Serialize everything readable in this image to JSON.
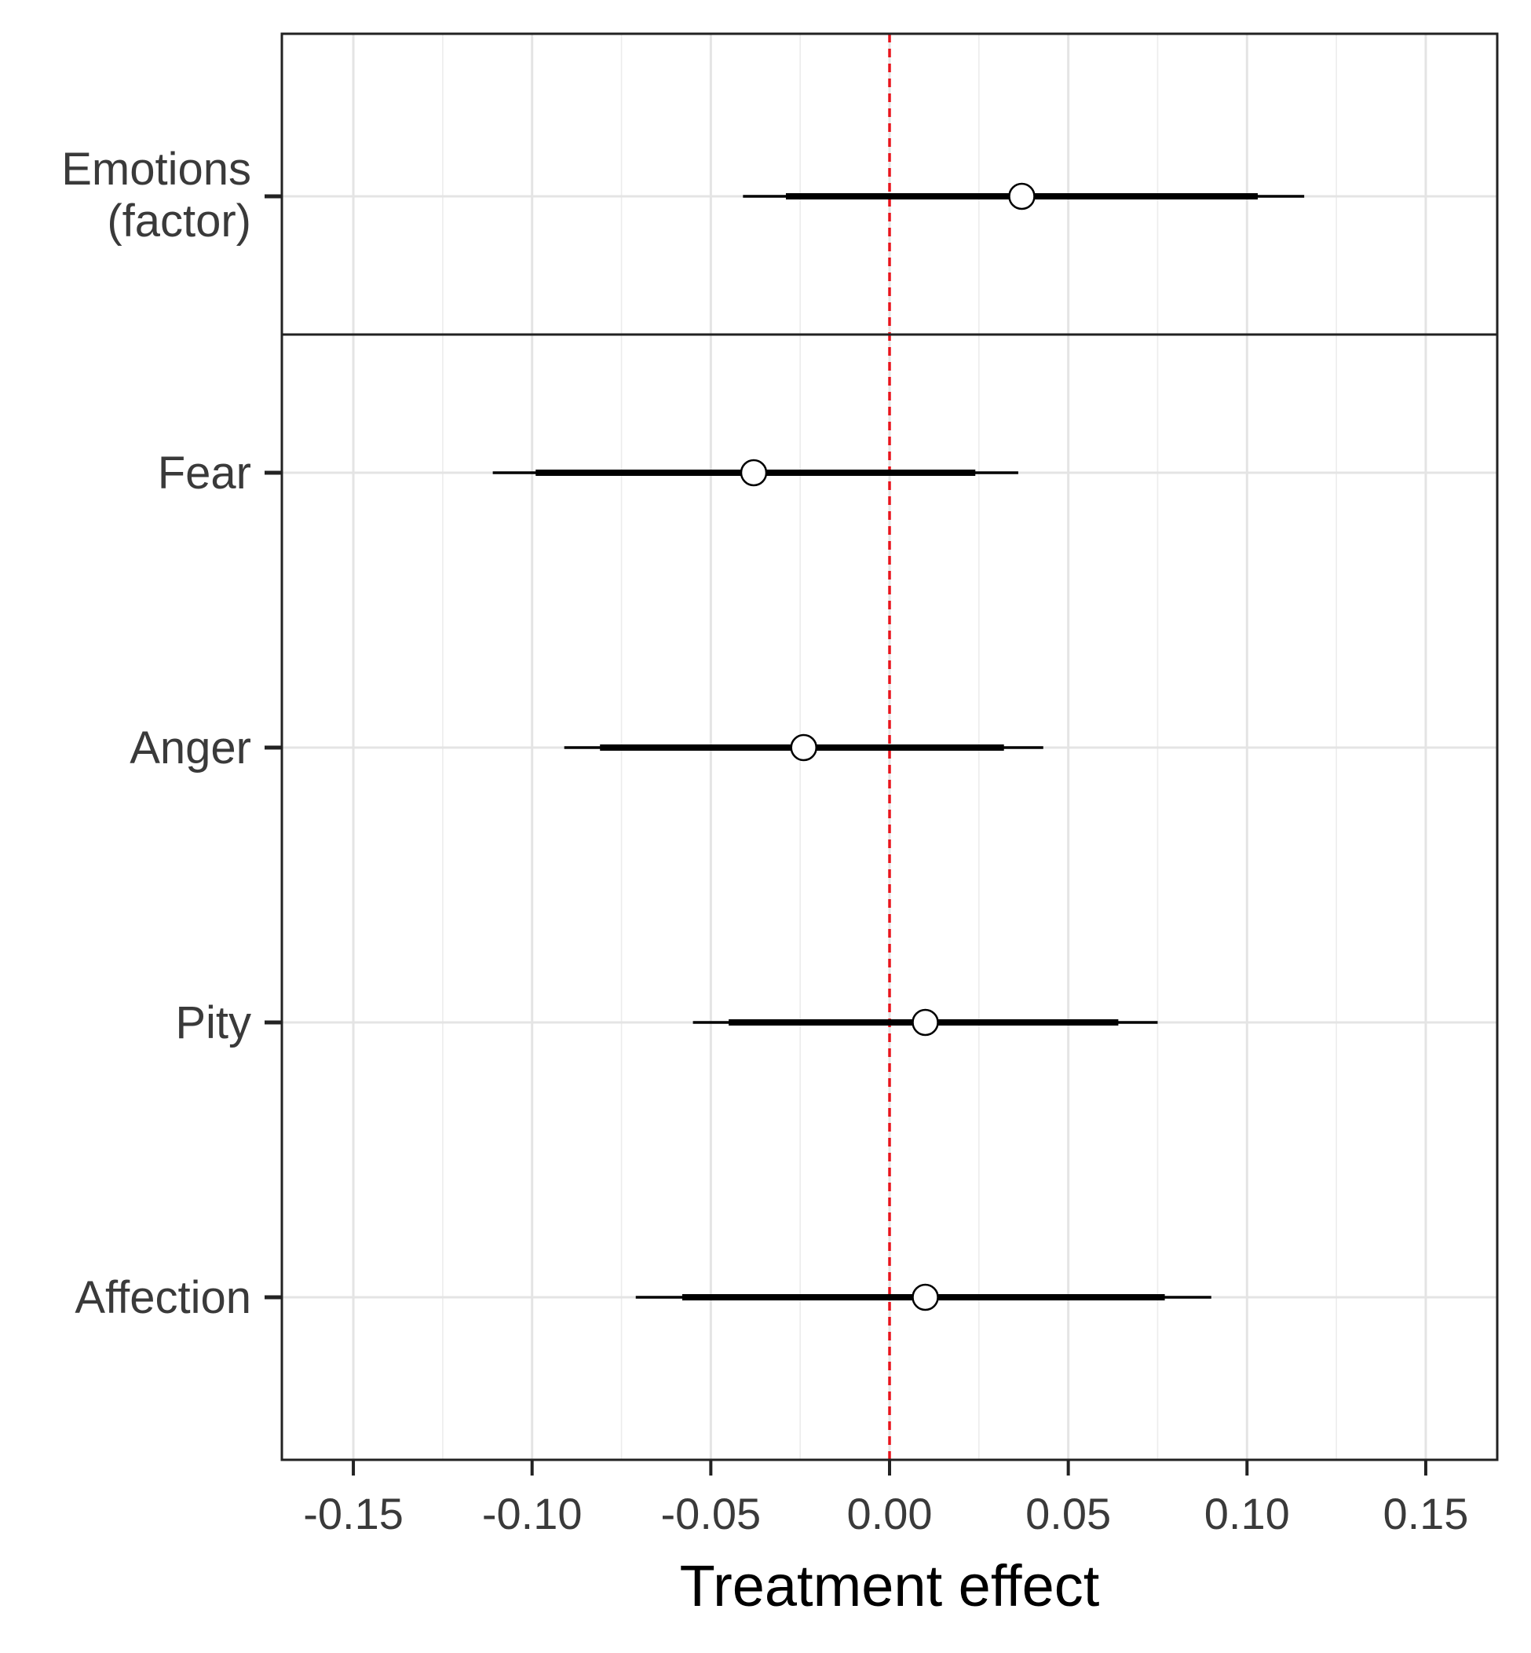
{
  "chart_data": {
    "type": "coefficient-plot",
    "title": "",
    "xlabel": "Treatment effect",
    "ylabel": "",
    "xlim": [
      -0.17,
      0.17
    ],
    "xticks": [
      -0.15,
      -0.1,
      -0.05,
      0.0,
      0.05,
      0.1,
      0.15
    ],
    "xtick_labels": [
      "-0.15",
      "-0.10",
      "-0.05",
      "0.00",
      "0.05",
      "0.10",
      "0.15"
    ],
    "grid": true,
    "reference_line": {
      "x": 0.0,
      "color": "#e8141c",
      "style": "dashed"
    },
    "panels": [
      {
        "rows": [
          {
            "label": [
              "Emotions",
              "(factor)"
            ],
            "estimate": 0.037,
            "ci90": [
              -0.029,
              0.103
            ],
            "ci95": [
              -0.041,
              0.116
            ]
          }
        ]
      },
      {
        "rows": [
          {
            "label": [
              "Fear"
            ],
            "estimate": -0.038,
            "ci90": [
              -0.099,
              0.024
            ],
            "ci95": [
              -0.111,
              0.036
            ]
          },
          {
            "label": [
              "Anger"
            ],
            "estimate": -0.024,
            "ci90": [
              -0.081,
              0.032
            ],
            "ci95": [
              -0.091,
              0.043
            ]
          },
          {
            "label": [
              "Pity"
            ],
            "estimate": 0.01,
            "ci90": [
              -0.045,
              0.064
            ],
            "ci95": [
              -0.055,
              0.075
            ]
          },
          {
            "label": [
              "Affection"
            ],
            "estimate": 0.01,
            "ci90": [
              -0.058,
              0.077
            ],
            "ci95": [
              -0.071,
              0.09
            ]
          }
        ]
      }
    ]
  }
}
